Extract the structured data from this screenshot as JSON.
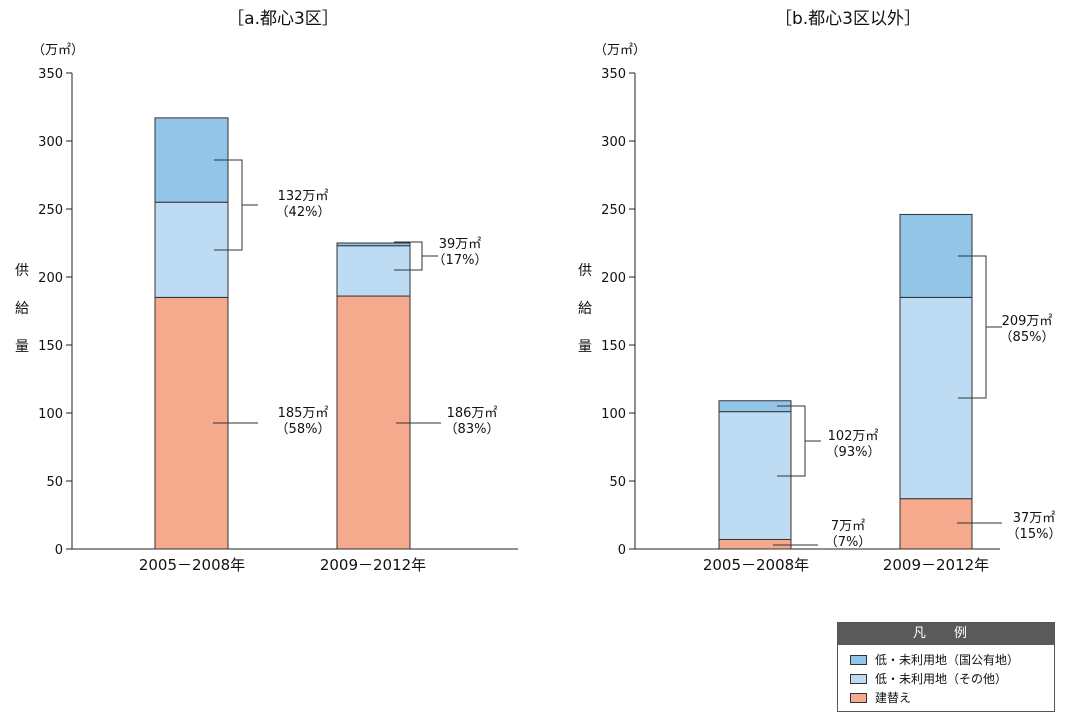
{
  "colors": {
    "state_owned": "#92c5e8",
    "other": "#bddcf3",
    "rebuild": "#f5aa8d",
    "outline": "#333333"
  },
  "legend": {
    "title": "凡 例",
    "items": [
      {
        "label": "低・未利用地（国公有地）",
        "color": "#92c5e8"
      },
      {
        "label": "低・未利用地（その他）",
        "color": "#bddcf3"
      },
      {
        "label": "建替え",
        "color": "#f5aa8d"
      }
    ]
  },
  "chart_data": [
    {
      "type": "bar",
      "stacked": true,
      "title": "［a.都心3区］",
      "unit": "（万㎡）",
      "ylabel": "供給量",
      "ylim": [
        0,
        350
      ],
      "yticks": [
        0,
        50,
        100,
        150,
        200,
        250,
        300,
        350
      ],
      "categories": [
        "2005－2008年",
        "2009－2012年"
      ],
      "series": [
        {
          "name": "建替え",
          "values": [
            185,
            186
          ]
        },
        {
          "name": "低・未利用地（その他）",
          "values": [
            70,
            37
          ]
        },
        {
          "name": "低・未利用地（国公有地）",
          "values": [
            62,
            2
          ]
        }
      ],
      "annotations": [
        {
          "category": 0,
          "group": "low_use",
          "text": "132万㎡",
          "percent": "（42%）"
        },
        {
          "category": 0,
          "group": "rebuild",
          "text": "185万㎡",
          "percent": "（58%）"
        },
        {
          "category": 1,
          "group": "low_use",
          "text": "39万㎡",
          "percent": "（17%）"
        },
        {
          "category": 1,
          "group": "rebuild",
          "text": "186万㎡",
          "percent": "（83%）"
        }
      ]
    },
    {
      "type": "bar",
      "stacked": true,
      "title": "［b.都心3区以外］",
      "unit": "（万㎡）",
      "ylabel": "供給量",
      "ylim": [
        0,
        350
      ],
      "yticks": [
        0,
        50,
        100,
        150,
        200,
        250,
        300,
        350
      ],
      "categories": [
        "2005－2008年",
        "2009－2012年"
      ],
      "series": [
        {
          "name": "建替え",
          "values": [
            7,
            37
          ]
        },
        {
          "name": "低・未利用地（その他）",
          "values": [
            94,
            148
          ]
        },
        {
          "name": "低・未利用地（国公有地）",
          "values": [
            8,
            61
          ]
        }
      ],
      "annotations": [
        {
          "category": 0,
          "group": "low_use",
          "text": "102万㎡",
          "percent": "（93%）"
        },
        {
          "category": 0,
          "group": "rebuild",
          "text": "7万㎡",
          "percent": "（7%）"
        },
        {
          "category": 1,
          "group": "low_use",
          "text": "209万㎡",
          "percent": "（85%）"
        },
        {
          "category": 1,
          "group": "rebuild",
          "text": "37万㎡",
          "percent": "（15%）"
        }
      ]
    }
  ]
}
